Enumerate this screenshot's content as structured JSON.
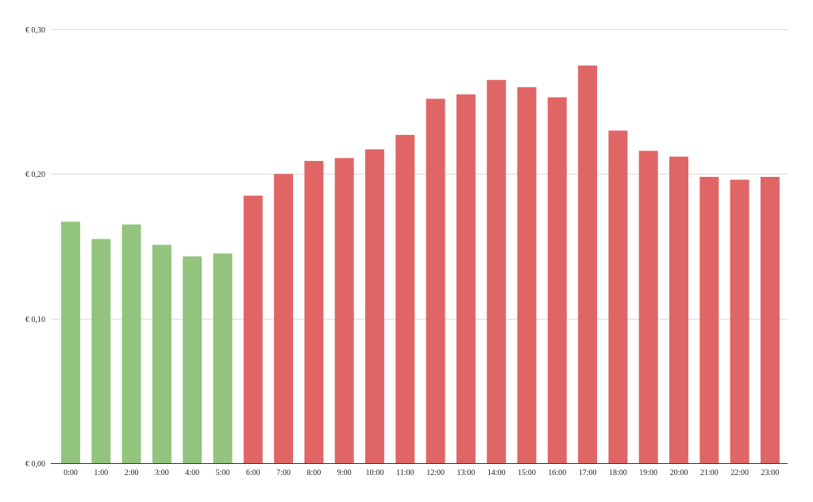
{
  "chart_data": {
    "type": "bar",
    "title": "",
    "xlabel": "",
    "ylabel": "",
    "ylim": [
      0,
      0.3
    ],
    "y_ticks": [
      0,
      0.1,
      0.2,
      0.3
    ],
    "y_tick_labels": [
      "€ 0,00",
      "€ 0,10",
      "€ 0,20",
      "€ 0,30"
    ],
    "grid": true,
    "legend": "none",
    "categories": [
      "0:00",
      "1:00",
      "2:00",
      "3:00",
      "4:00",
      "5:00",
      "6:00",
      "7:00",
      "8:00",
      "9:00",
      "10:00",
      "11:00",
      "12:00",
      "13:00",
      "14:00",
      "15:00",
      "16:00",
      "17:00",
      "18:00",
      "19:00",
      "20:00",
      "21:00",
      "22:00",
      "23:00"
    ],
    "values": [
      0.167,
      0.155,
      0.165,
      0.151,
      0.143,
      0.145,
      0.185,
      0.2,
      0.209,
      0.211,
      0.217,
      0.227,
      0.252,
      0.255,
      0.265,
      0.26,
      0.253,
      0.275,
      0.23,
      0.216,
      0.212,
      0.198,
      0.196,
      0.198
    ],
    "bar_colors": [
      "#93c47d",
      "#93c47d",
      "#93c47d",
      "#93c47d",
      "#93c47d",
      "#93c47d",
      "#e06666",
      "#e06666",
      "#e06666",
      "#e06666",
      "#e06666",
      "#e06666",
      "#e06666",
      "#e06666",
      "#e06666",
      "#e06666",
      "#e06666",
      "#e06666",
      "#e06666",
      "#e06666",
      "#e06666",
      "#e06666",
      "#e06666",
      "#e06666"
    ],
    "colors": {
      "green": "#93c47d",
      "red": "#e06666"
    }
  }
}
